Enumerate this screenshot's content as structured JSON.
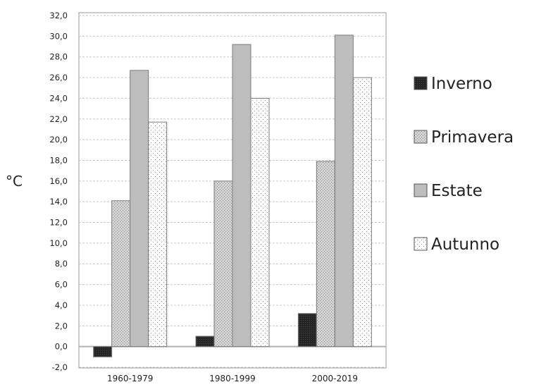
{
  "chart_data": {
    "type": "bar",
    "ylabel": "°C",
    "xlabel": "",
    "ylim": [
      -2.0,
      32.0
    ],
    "ytick_step": 2,
    "y_ticks": [
      "-2,0",
      "0,0",
      "2,0",
      "4,0",
      "6,0",
      "8,0",
      "10,0",
      "12,0",
      "14,0",
      "16,0",
      "18,0",
      "20,0",
      "22,0",
      "24,0",
      "26,0",
      "28,0",
      "30,0",
      "32,0"
    ],
    "categories": [
      "1960-1979",
      "1980-1999",
      "2000-2019"
    ],
    "series": [
      {
        "name": "Inverno",
        "values": [
          -1.0,
          1.0,
          3.2
        ]
      },
      {
        "name": "Primavera",
        "values": [
          14.1,
          16.0,
          17.9
        ]
      },
      {
        "name": "Estate",
        "values": [
          26.7,
          29.2,
          30.1
        ]
      },
      {
        "name": "Autunno",
        "values": [
          21.7,
          24.0,
          26.0
        ]
      }
    ],
    "grid": true,
    "legend_position": "right",
    "colors": {
      "Inverno": "#222222",
      "Primavera": "#d4d4d4",
      "Estate": "#bdbdbd",
      "Autunno": "#fafafa"
    }
  }
}
